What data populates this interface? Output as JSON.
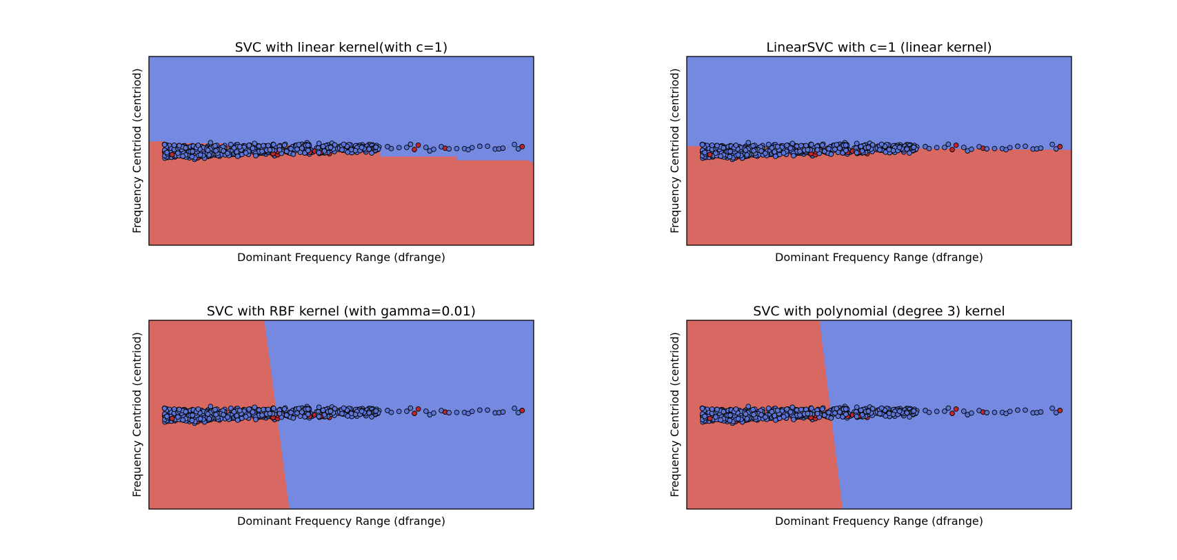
{
  "colors": {
    "region_red": "#d86862",
    "region_blue": "#7589e0",
    "point_blue": "#5b74d6",
    "point_red": "#c0272d",
    "point_edge": "#000000"
  },
  "chart_data": [
    {
      "type": "scatter",
      "title": "SVC with linear kernel(with c=1)",
      "xlabel": "Dominant Frequency Range (dfrange)",
      "ylabel": "Frequency Centriod (centriod)",
      "xticks": false,
      "yticks": false,
      "regions": {
        "above_boundary": "blue",
        "below_boundary": "red",
        "boundary_shape": "staircase"
      },
      "boundary": {
        "x": [
          0,
          0.04,
          0.2,
          0.4,
          0.6,
          0.8,
          0.99
        ],
        "y": [
          0.55,
          0.54,
          0.53,
          0.5,
          0.47,
          0.45,
          0.44
        ]
      },
      "points": {
        "x_range": [
          0.04,
          0.97
        ],
        "y_center": 0.52,
        "dense_until": 0.6
      }
    },
    {
      "type": "scatter",
      "title": "LinearSVC with c=1 (linear kernel)",
      "xlabel": "Dominant Frequency Range (dfrange)",
      "ylabel": "Frequency Centriod (centriod)",
      "xticks": false,
      "yticks": false,
      "regions": {
        "above_boundary": "blue",
        "below_boundary": "red",
        "boundary_shape": "line"
      },
      "boundary": {
        "x": [
          0,
          1
        ],
        "y": [
          0.525,
          0.505
        ]
      },
      "points": {
        "x_range": [
          0.04,
          0.97
        ],
        "y_center": 0.52,
        "dense_until": 0.6
      }
    },
    {
      "type": "scatter",
      "title": "SVC with RBF kernel (with gamma=0.01)",
      "xlabel": "Dominant Frequency Range (dfrange)",
      "ylabel": "Frequency Centriod (centriod)",
      "xticks": false,
      "yticks": false,
      "regions": {
        "left_of_boundary": "red",
        "right_of_boundary": "blue",
        "boundary_shape": "line"
      },
      "boundary": {
        "x": [
          0.3,
          0.365
        ],
        "y": [
          1,
          0
        ]
      },
      "points": {
        "x_range": [
          0.04,
          0.97
        ],
        "y_center": 0.52,
        "dense_until": 0.6
      }
    },
    {
      "type": "scatter",
      "title": "SVC with polynomial (degree 3) kernel",
      "xlabel": "Dominant Frequency Range (dfrange)",
      "ylabel": "Frequency Centriod (centriod)",
      "xticks": false,
      "yticks": false,
      "regions": {
        "left_of_boundary": "red",
        "right_of_boundary": "blue",
        "boundary_shape": "line"
      },
      "boundary": {
        "x": [
          0.345,
          0.405
        ],
        "y": [
          1,
          0
        ]
      },
      "points": {
        "x_range": [
          0.04,
          0.97
        ],
        "y_center": 0.52,
        "dense_until": 0.6
      }
    }
  ]
}
